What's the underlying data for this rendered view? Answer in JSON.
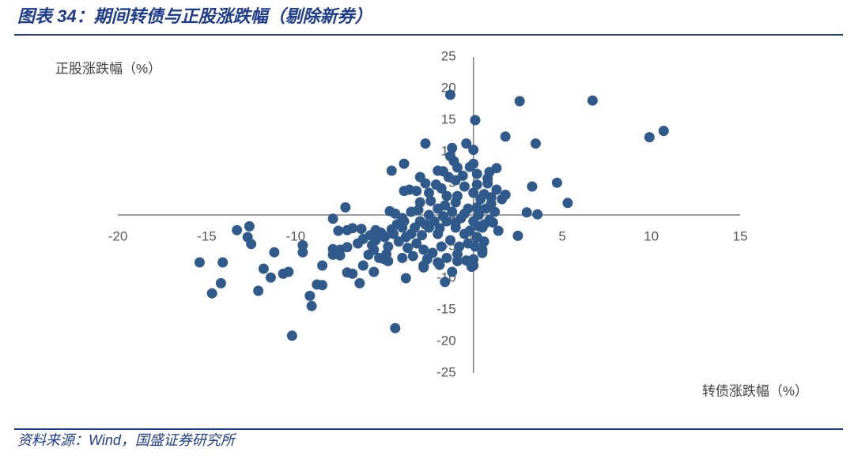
{
  "chart_data": {
    "type": "scatter",
    "title": "图表 34：期间转债与正股涨跌幅（剔除新券）",
    "ylabel": "正股涨跌幅（%）",
    "xlabel": "转债涨跌幅（%）",
    "source": "资料来源：Wind，国盛证券研究所",
    "color": "#30598c",
    "xlim": [
      -20,
      15
    ],
    "xticks": [
      -20,
      -15,
      -10,
      -5,
      0,
      5,
      10,
      15
    ],
    "ylim": [
      -25,
      25
    ],
    "yticks": [
      -25,
      -20,
      -15,
      -10,
      -5,
      0,
      5,
      10,
      15,
      20,
      25
    ],
    "x": [
      -1.3,
      2.6,
      6.7,
      0.1,
      10.7,
      9.9,
      1.8,
      3.5,
      -2.7,
      -0.4,
      -1.2,
      0,
      -1.3,
      -3.9,
      -4.6,
      0,
      -0.9,
      1.3,
      -2,
      -1.7,
      0.2,
      0.8,
      4.7,
      3.3,
      -3.9,
      1,
      3.0,
      3.6,
      5.3,
      -4.7,
      -7.2,
      -7.9,
      -13.3,
      -12.6,
      -12.7,
      -12.5,
      -7.6,
      -7.1,
      -6.8,
      -6.3,
      -5.5,
      -9.6,
      -9.6,
      -11.2,
      -15.4,
      -14.1,
      -11.8,
      -11.4,
      -10.7,
      -10.4,
      -14.2,
      -14.7,
      -12.1,
      -9.2,
      -9.1,
      -8.8,
      -8.5,
      -8.5,
      -7.9,
      -7.9,
      -7.5,
      -7.5,
      -7.1,
      -7.1,
      -6.8,
      -6.4,
      -6.2,
      -5.9,
      -5.6,
      -5.7,
      -5,
      -4.8,
      -3.8,
      -4.4,
      -10.2,
      -1.6,
      0,
      0,
      0.5,
      -0.9,
      2.5,
      0.6,
      -2.8,
      -1.9,
      -4,
      -3.5,
      -3,
      -2.5,
      -2,
      -1.5,
      -1,
      -0.5,
      0,
      0.3,
      -0.3,
      -1,
      -1.5,
      -2,
      -2.5,
      -3,
      -3.5,
      -4,
      -4.5,
      -5,
      -5.5,
      -4.8,
      -4.2,
      -3.7,
      -3.2,
      -2.8,
      -2.3,
      -1.8,
      -1.3,
      -0.8,
      -0.3,
      0.2,
      0.5,
      0.7,
      0.4,
      0,
      -0.5,
      -1,
      -1.8,
      -2.5,
      -3.2,
      -2.7,
      -1.4,
      -0.6,
      0.2,
      0.6,
      1,
      1.2,
      0.9,
      0.3,
      -0.2,
      -0.7,
      -1.2,
      -1.7,
      -2.2,
      -2.7,
      -3.3,
      -3.8,
      -4.3,
      -4.6,
      -5.2,
      -5.8,
      -6.2,
      -6.5,
      -5.6,
      -4.9,
      -4,
      -3.4,
      -2.6,
      -2,
      -1.5,
      -0.9,
      -0.4,
      0.1,
      0.6,
      1.4,
      1.6,
      1.3,
      0.8,
      1.8,
      0.9,
      -0.2,
      -1.1,
      -2.1,
      -3,
      -3.6,
      -1.6,
      -0.9,
      -2.4,
      0.2,
      -0.5,
      -1,
      -1.9,
      -2.9,
      -3.9,
      -4.4,
      -3.1,
      1.1,
      0.5,
      -0.1,
      -1.2,
      -2.8,
      -5.3
    ],
    "values": [
      19.0,
      18.0,
      18.1,
      15,
      13.3,
      12.3,
      12.4,
      11.3,
      11.3,
      11.3,
      10.6,
      10.3,
      9.3,
      8.1,
      7.0,
      8.1,
      7.5,
      7.4,
      7,
      6.9,
      6.5,
      5.8,
      5.1,
      4.5,
      3.8,
      2.8,
      0.4,
      0.1,
      1.9,
      0.6,
      1.2,
      -0.6,
      -2.4,
      -1.8,
      -3.5,
      -4.6,
      -2.5,
      -2.4,
      -2.1,
      -2.2,
      -2.4,
      -4.8,
      -5.9,
      -5.9,
      -7.5,
      -7.5,
      -8.5,
      -9.9,
      -9.3,
      -9,
      -10.8,
      -12.4,
      -12,
      -12.8,
      -14.4,
      -11,
      -11.1,
      -8,
      -6.3,
      -5.4,
      -5.5,
      -6.4,
      -5.1,
      -9.1,
      -9.3,
      -10.8,
      -8,
      -6.3,
      -9,
      -4.8,
      -7,
      -7.3,
      -10,
      -17.9,
      -19.1,
      -10.6,
      -8,
      -7,
      -5.5,
      -7.3,
      -3.3,
      -1.5,
      -8.3,
      -7.9,
      -2,
      -3,
      -1,
      -2,
      -3,
      -1,
      -2,
      -3,
      -1,
      0,
      1,
      2,
      3,
      1,
      0,
      2,
      0.5,
      -0.5,
      -3,
      -3.5,
      -4,
      -5,
      -4.2,
      -5.2,
      -4.5,
      -5.5,
      -6,
      -5,
      -4,
      -5,
      -4.5,
      -3.5,
      -2,
      1,
      2.5,
      3.5,
      4.5,
      5.5,
      4.2,
      3.5,
      3.8,
      5,
      6,
      6.2,
      4.8,
      3.3,
      1.8,
      0.5,
      -0.8,
      -1.8,
      -2.5,
      -0.5,
      0.5,
      -0.2,
      -1,
      -1.5,
      -2,
      -3.5,
      -1.5,
      -2.3,
      -2.8,
      -3.2,
      -3.8,
      -4.5,
      -5.5,
      -6.2,
      -6.8,
      -6.5,
      -7,
      -7.5,
      -6.8,
      -6.2,
      -7.2,
      -5,
      -4.2,
      -2.5,
      2.5,
      4,
      5,
      3.2,
      6.8,
      7.6,
      8.5,
      4.8,
      6,
      4,
      1.5,
      3,
      2.2,
      1.2,
      0.2,
      -1.2,
      -2.1,
      -3.2,
      -1,
      0.2,
      0.8,
      -1.2,
      -6,
      -8.2,
      -9,
      -8,
      -6.8
    ]
  }
}
